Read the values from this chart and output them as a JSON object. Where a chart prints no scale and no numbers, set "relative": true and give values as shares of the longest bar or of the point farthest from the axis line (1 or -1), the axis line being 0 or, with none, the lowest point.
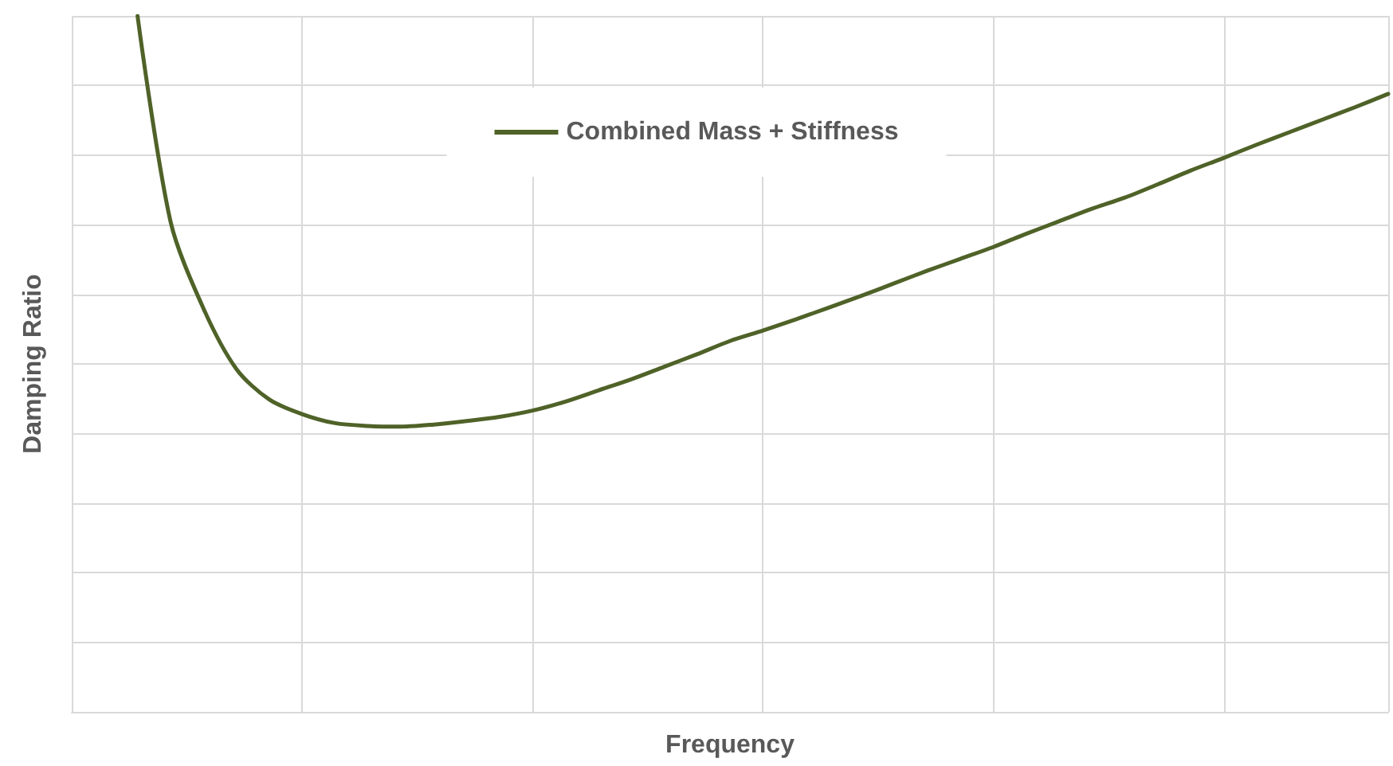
{
  "chart_data": {
    "type": "line",
    "relative": true,
    "xlabel": "Frequency",
    "ylabel": "Damping Ratio",
    "grid": true,
    "legend": "top",
    "marker": "none",
    "line_style": "solid",
    "categories": [
      null,
      null,
      null,
      null,
      null,
      null,
      null,
      null,
      null,
      null,
      null,
      null,
      null,
      null,
      null,
      null,
      null,
      null,
      null,
      null,
      null,
      null,
      null,
      null,
      null,
      null,
      null,
      null,
      null,
      null,
      null,
      null,
      null,
      null,
      null,
      null,
      null,
      null,
      null,
      null,
      null
    ],
    "series": [
      {
        "name": "Combined Mass + Stiffness",
        "color": "#4f6228",
        "values": [
          null,
          null,
          1.0,
          0.705,
          0.58,
          0.493,
          0.449,
          0.428,
          0.415,
          0.411,
          0.41,
          0.413,
          0.418,
          0.424,
          0.433,
          0.446,
          0.462,
          0.478,
          0.496,
          0.514,
          0.533,
          0.548,
          0.564,
          0.581,
          0.598,
          0.616,
          0.634,
          0.651,
          0.668,
          0.687,
          0.705,
          0.723,
          0.739,
          0.758,
          0.778,
          0.796,
          0.815,
          0.833,
          0.851,
          0.869,
          0.888
        ]
      }
    ]
  }
}
